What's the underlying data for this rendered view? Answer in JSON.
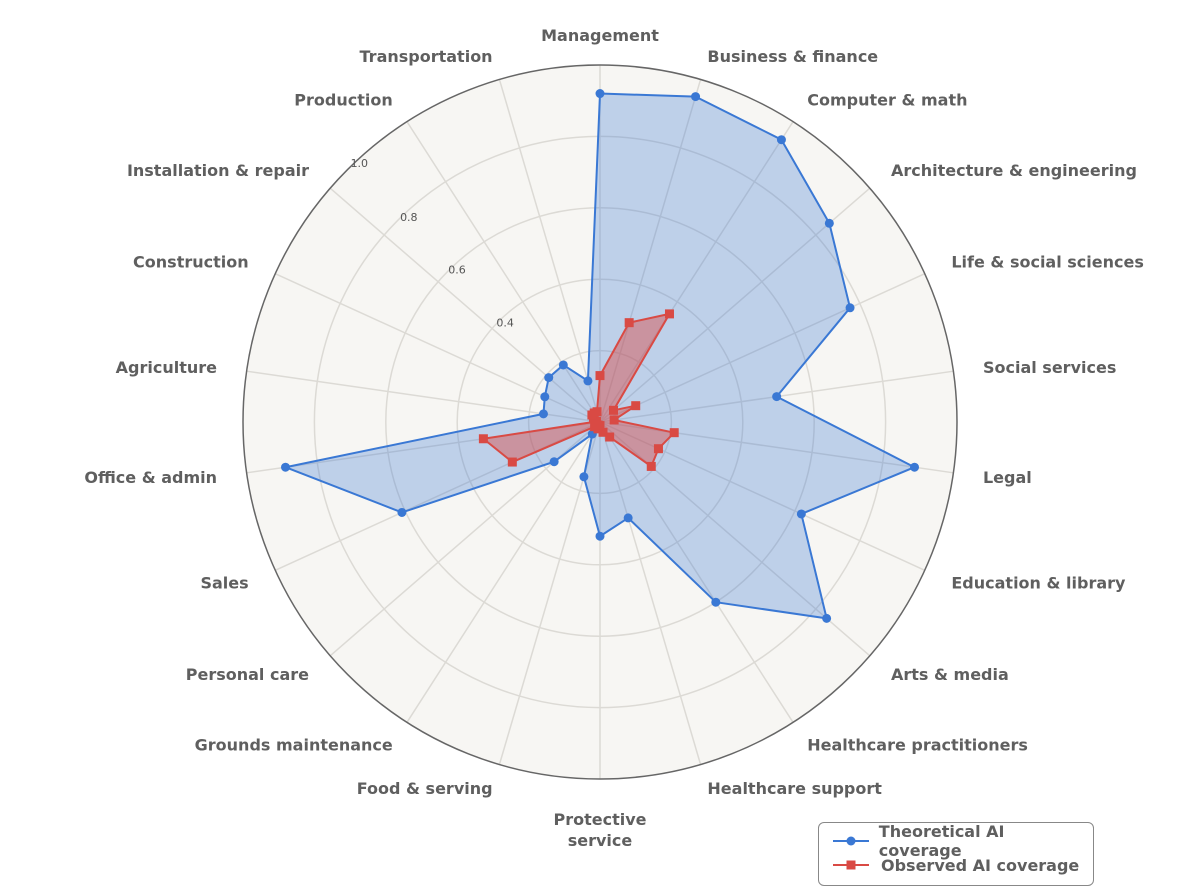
{
  "chart_data": {
    "type": "radar",
    "categories": [
      "Management",
      "Business & finance",
      "Computer & math",
      "Architecture & engineering",
      "Life & social sciences",
      "Social services",
      "Legal",
      "Education & library",
      "Arts & media",
      "Healthcare practitioners",
      "Healthcare support",
      "Protective service",
      "Food & serving",
      "Grounds maintenance",
      "Personal care",
      "Sales",
      "Office & admin",
      "Agriculture",
      "Construction",
      "Installation & repair",
      "Production",
      "Transportation"
    ],
    "rlim": [
      0,
      1.0
    ],
    "tick_labels": [
      "0.4",
      "0.6",
      "0.8",
      "1.0"
    ],
    "ticks": [
      0.4,
      0.6,
      0.8,
      1.0
    ],
    "grid": true,
    "legend_position": "bottom-right",
    "series": [
      {
        "name": "Theoretical AI coverage",
        "color": "#3a78d4",
        "marker": "circle",
        "values": [
          0.92,
          0.95,
          0.94,
          0.85,
          0.77,
          0.5,
          0.89,
          0.62,
          0.84,
          0.6,
          0.28,
          0.32,
          0.16,
          0.04,
          0.17,
          0.61,
          0.89,
          0.16,
          0.17,
          0.19,
          0.19,
          0.12
        ]
      },
      {
        "name": "Observed AI coverage",
        "color": "#d94a44",
        "marker": "square",
        "values": [
          0.13,
          0.29,
          0.36,
          0.05,
          0.11,
          0.04,
          0.21,
          0.18,
          0.19,
          0.05,
          0.03,
          0.01,
          0.02,
          0.01,
          0.02,
          0.27,
          0.33,
          0.01,
          0.02,
          0.03,
          0.03,
          0.03
        ]
      }
    ]
  }
}
